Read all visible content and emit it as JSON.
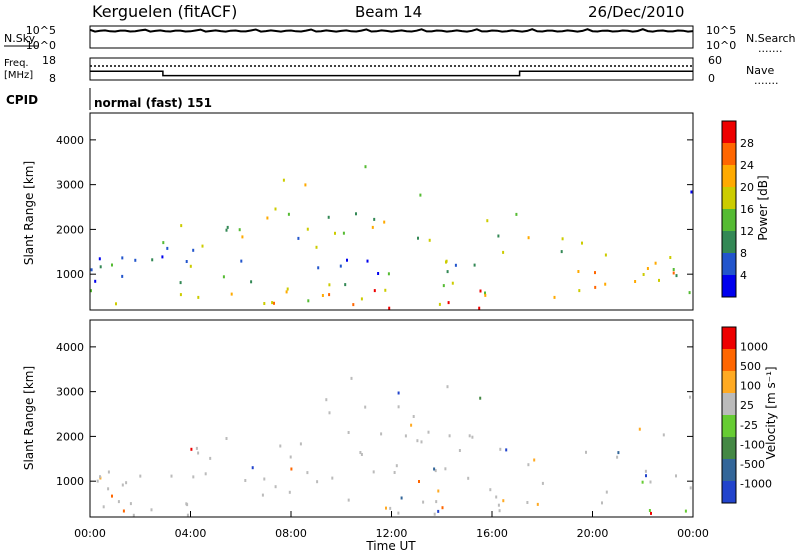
{
  "header": {
    "station": "Kerguelen (fitACF)",
    "beam": "Beam 14",
    "date": "26/Dec/2010"
  },
  "side_labels": {
    "nsky": "N.Sky",
    "freq_line1": "Freq.",
    "freq_line2": "[MHz]",
    "cpid": "CPID",
    "nsearch": "N.Search",
    "nave": "Nave",
    "dots": "......."
  },
  "cpid_text": "normal (fast) 151",
  "chart_data": [
    {
      "type": "line",
      "name": "noise-panel",
      "left_ticks": [
        "10^5",
        "10^0"
      ],
      "right_ticks": [
        "10^5",
        "10^0"
      ]
    },
    {
      "type": "line",
      "name": "frequency-panel",
      "left_ticks": [
        "18",
        "8"
      ],
      "right_ticks": [
        "60",
        "0"
      ],
      "freq_series": {
        "x_hours": [
          0,
          2.9,
          2.9,
          17.1,
          17.1,
          24
        ],
        "y_mhz": [
          12,
          12,
          10,
          10,
          12,
          12
        ]
      }
    },
    {
      "type": "heatmap",
      "name": "power-panel",
      "ylabel": "Slant Range [km]",
      "yticks": [
        "4000",
        "3000",
        "2000",
        "1000"
      ],
      "ytick_values": [
        4000,
        3000,
        2000,
        1000
      ],
      "ylim": [
        200,
        4600
      ],
      "xlim": [
        0,
        24
      ],
      "colorbar_label": "Power [dB]",
      "colorbar_ticks": [
        "28",
        "24",
        "20",
        "16",
        "12",
        "8",
        "4"
      ],
      "colors": [
        "#0000ee",
        "#2255cc",
        "#338855",
        "#55bb33",
        "#cccc00",
        "#ffaa00",
        "#ff6600",
        "#ee0000"
      ]
    },
    {
      "type": "heatmap",
      "name": "velocity-panel",
      "ylabel": "Slant Range [km]",
      "xlabel": "Time UT",
      "yticks": [
        "4000",
        "3000",
        "2000",
        "1000"
      ],
      "ytick_values": [
        4000,
        3000,
        2000,
        1000
      ],
      "ylim": [
        200,
        4600
      ],
      "xlim": [
        0,
        24
      ],
      "xticks": [
        "00:00",
        "04:00",
        "08:00",
        "12:00",
        "16:00",
        "20:00",
        "00:00"
      ],
      "xtick_values": [
        0,
        4,
        8,
        12,
        16,
        20,
        24
      ],
      "colorbar_label": "Velocity [m s⁻¹]",
      "colorbar_ticks": [
        "1000",
        "500",
        "100",
        "25",
        "-25",
        "-100",
        "-500",
        "-1000"
      ],
      "colors": [
        "#2244cc",
        "#336699",
        "#448844",
        "#66cc33",
        "#bbbbbb",
        "#ffaa22",
        "#ff6600",
        "#ee0000"
      ]
    }
  ]
}
